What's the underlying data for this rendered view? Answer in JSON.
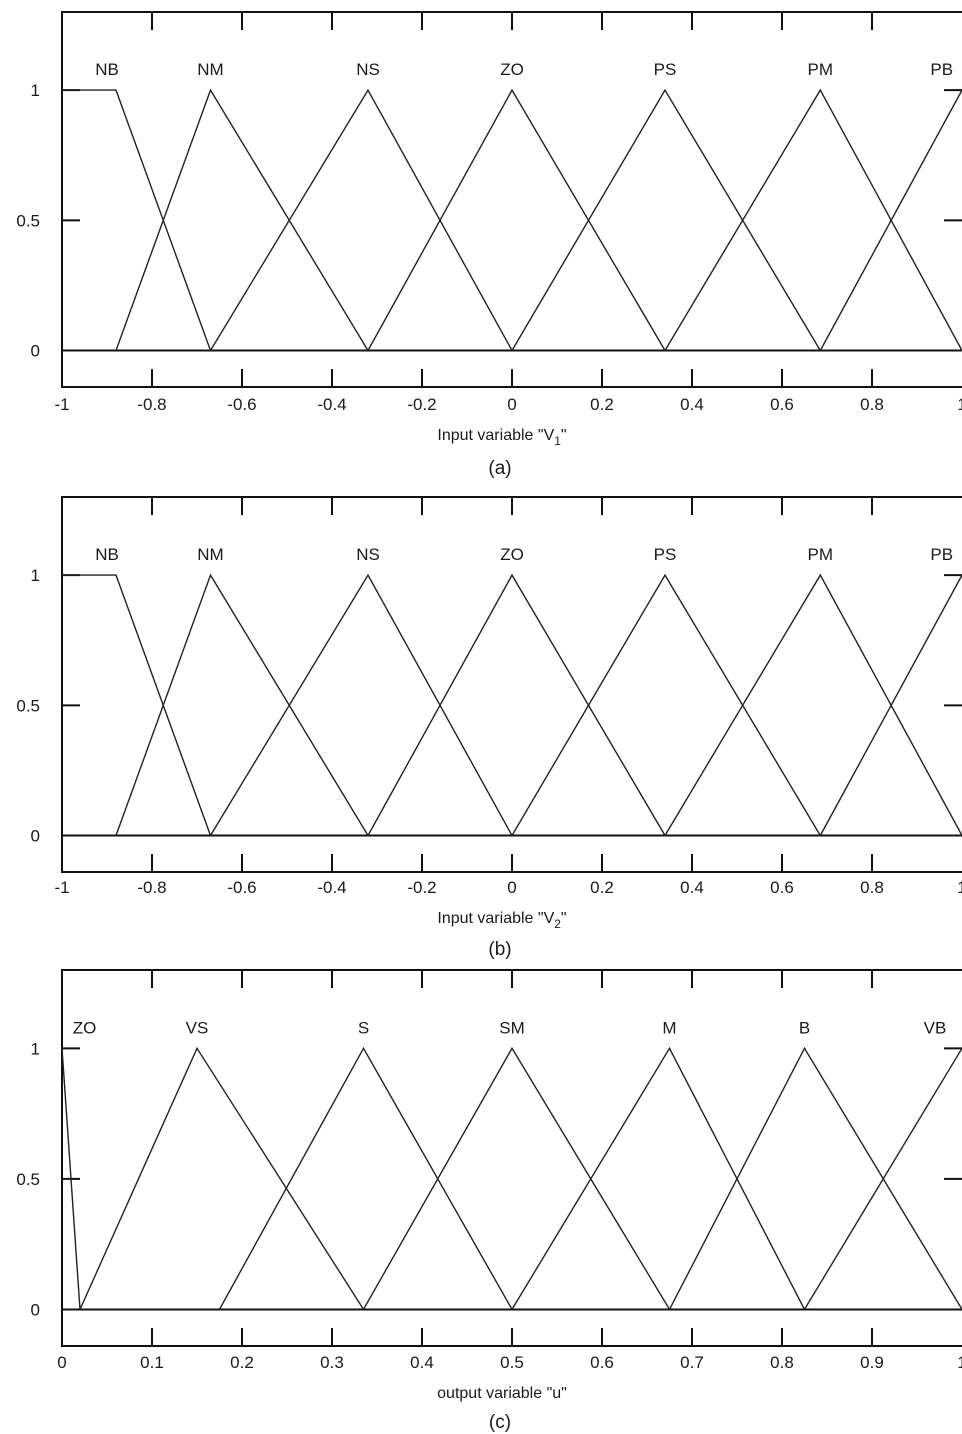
{
  "chart_data": [
    {
      "type": "line",
      "panel": "a",
      "caption": "(a)",
      "xlabel_main": "Input variable \"V",
      "xlabel_sub": "1",
      "xlabel_end": "\"",
      "xlim": [
        -1,
        1
      ],
      "ylim": [
        -0.14,
        1.3
      ],
      "x_ticks": [
        -1,
        -0.8,
        -0.6,
        -0.4,
        -0.2,
        0,
        0.2,
        0.4,
        0.6,
        0.8,
        1
      ],
      "x_tick_labels": [
        "-1",
        "-0.8",
        "-0.6",
        "-0.4",
        "-0.2",
        "0",
        "0.2",
        "0.4",
        "0.6",
        "0.8",
        "1"
      ],
      "y_ticks": [
        0,
        0.5,
        1
      ],
      "y_tick_labels": [
        "0",
        "0.5",
        "1"
      ],
      "series": [
        {
          "name": "NB",
          "points": [
            [
              -1,
              1
            ],
            [
              -0.88,
              1
            ],
            [
              -0.67,
              0
            ]
          ],
          "label_x": -0.9
        },
        {
          "name": "NM",
          "points": [
            [
              -0.88,
              0
            ],
            [
              -0.67,
              1
            ],
            [
              -0.32,
              0
            ]
          ],
          "label_x": -0.67
        },
        {
          "name": "NS",
          "points": [
            [
              -0.67,
              0
            ],
            [
              -0.32,
              1
            ],
            [
              0,
              0
            ]
          ],
          "label_x": -0.32
        },
        {
          "name": "ZO",
          "points": [
            [
              -0.32,
              0
            ],
            [
              0,
              1
            ],
            [
              0.34,
              0
            ]
          ],
          "label_x": 0
        },
        {
          "name": "PS",
          "points": [
            [
              0,
              0
            ],
            [
              0.34,
              1
            ],
            [
              0.685,
              0
            ]
          ],
          "label_x": 0.34
        },
        {
          "name": "PM",
          "points": [
            [
              0.34,
              0
            ],
            [
              0.685,
              1
            ],
            [
              1,
              0
            ]
          ],
          "label_x": 0.685
        },
        {
          "name": "PB",
          "points": [
            [
              0.685,
              0
            ],
            [
              1,
              1
            ]
          ],
          "label_x": 0.955
        }
      ]
    },
    {
      "type": "line",
      "panel": "b",
      "caption": "(b)",
      "xlabel_main": "Input variable \"V",
      "xlabel_sub": "2",
      "xlabel_end": "\"",
      "xlim": [
        -1,
        1
      ],
      "ylim": [
        -0.14,
        1.3
      ],
      "x_ticks": [
        -1,
        -0.8,
        -0.6,
        -0.4,
        -0.2,
        0,
        0.2,
        0.4,
        0.6,
        0.8,
        1
      ],
      "x_tick_labels": [
        "-1",
        "-0.8",
        "-0.6",
        "-0.4",
        "-0.2",
        "0",
        "0.2",
        "0.4",
        "0.6",
        "0.8",
        "1"
      ],
      "y_ticks": [
        0,
        0.5,
        1
      ],
      "y_tick_labels": [
        "0",
        "0.5",
        "1"
      ],
      "series": [
        {
          "name": "NB",
          "points": [
            [
              -1,
              1
            ],
            [
              -0.88,
              1
            ],
            [
              -0.67,
              0
            ]
          ],
          "label_x": -0.9
        },
        {
          "name": "NM",
          "points": [
            [
              -0.88,
              0
            ],
            [
              -0.67,
              1
            ],
            [
              -0.32,
              0
            ]
          ],
          "label_x": -0.67
        },
        {
          "name": "NS",
          "points": [
            [
              -0.67,
              0
            ],
            [
              -0.32,
              1
            ],
            [
              0,
              0
            ]
          ],
          "label_x": -0.32
        },
        {
          "name": "ZO",
          "points": [
            [
              -0.32,
              0
            ],
            [
              0,
              1
            ],
            [
              0.34,
              0
            ]
          ],
          "label_x": 0
        },
        {
          "name": "PS",
          "points": [
            [
              0,
              0
            ],
            [
              0.34,
              1
            ],
            [
              0.685,
              0
            ]
          ],
          "label_x": 0.34
        },
        {
          "name": "PM",
          "points": [
            [
              0.34,
              0
            ],
            [
              0.685,
              1
            ],
            [
              1,
              0
            ]
          ],
          "label_x": 0.685
        },
        {
          "name": "PB",
          "points": [
            [
              0.685,
              0
            ],
            [
              1,
              1
            ]
          ],
          "label_x": 0.955
        }
      ]
    },
    {
      "type": "line",
      "panel": "c",
      "caption": "(c)",
      "xlabel_main": "output variable \"u\"",
      "xlabel_sub": "",
      "xlabel_end": "",
      "xlim": [
        0,
        1
      ],
      "ylim": [
        -0.14,
        1.3
      ],
      "x_ticks": [
        0,
        0.1,
        0.2,
        0.3,
        0.4,
        0.5,
        0.6,
        0.7,
        0.8,
        0.9,
        1
      ],
      "x_tick_labels": [
        "0",
        "0.1",
        "0.2",
        "0.3",
        "0.4",
        "0.5",
        "0.6",
        "0.7",
        "0.8",
        "0.9",
        "1"
      ],
      "y_ticks": [
        0,
        0.5,
        1
      ],
      "y_tick_labels": [
        "0",
        "0.5",
        "1"
      ],
      "series": [
        {
          "name": "ZO",
          "points": [
            [
              0,
              1
            ],
            [
              0.02,
              0
            ]
          ],
          "label_x": 0.025
        },
        {
          "name": "VS",
          "points": [
            [
              0.02,
              0
            ],
            [
              0.15,
              1
            ],
            [
              0.335,
              0
            ]
          ],
          "label_x": 0.15
        },
        {
          "name": "S",
          "points": [
            [
              0.175,
              0
            ],
            [
              0.335,
              1
            ],
            [
              0.5,
              0
            ]
          ],
          "label_x": 0.335
        },
        {
          "name": "SM",
          "points": [
            [
              0.335,
              0
            ],
            [
              0.5,
              1
            ],
            [
              0.675,
              0
            ]
          ],
          "label_x": 0.5
        },
        {
          "name": "M",
          "points": [
            [
              0.5,
              0
            ],
            [
              0.675,
              1
            ],
            [
              0.825,
              0
            ]
          ],
          "label_x": 0.675
        },
        {
          "name": "B",
          "points": [
            [
              0.675,
              0
            ],
            [
              0.825,
              1
            ],
            [
              1,
              0
            ]
          ],
          "label_x": 0.825
        },
        {
          "name": "VB",
          "points": [
            [
              0.825,
              0
            ],
            [
              1,
              1
            ]
          ],
          "label_x": 0.97
        }
      ]
    }
  ]
}
